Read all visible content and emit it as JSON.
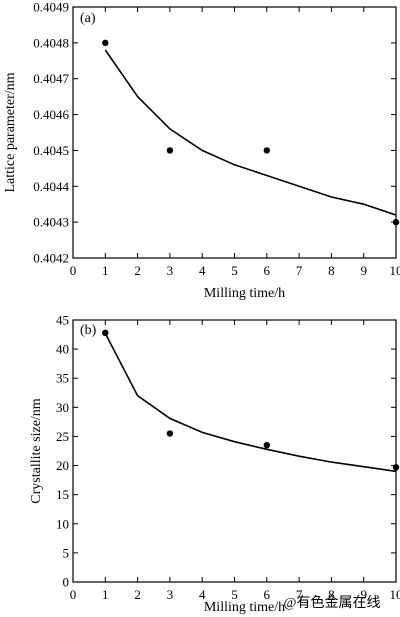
{
  "chart_data": [
    {
      "type": "scatter",
      "panel_label": "(a)",
      "xlabel": "Milling time/h",
      "ylabel": "Lattice parameter/nm",
      "xlim": [
        0,
        10
      ],
      "ylim": [
        0.4042,
        0.4049
      ],
      "xticks": [
        0,
        1,
        2,
        3,
        4,
        5,
        6,
        7,
        8,
        9,
        10
      ],
      "yticks": [
        "0.4042",
        "0.4043",
        "0.4044",
        "0.4045",
        "0.4046",
        "0.4047",
        "0.4048",
        "0.4049"
      ],
      "points": [
        {
          "x": 1,
          "y": 0.4048
        },
        {
          "x": 3,
          "y": 0.4045
        },
        {
          "x": 6,
          "y": 0.4045
        },
        {
          "x": 10,
          "y": 0.4043
        }
      ],
      "fit_curve": [
        {
          "x": 1,
          "y": 0.40478
        },
        {
          "x": 2,
          "y": 0.40465
        },
        {
          "x": 3,
          "y": 0.40456
        },
        {
          "x": 4,
          "y": 0.4045
        },
        {
          "x": 5,
          "y": 0.40446
        },
        {
          "x": 6,
          "y": 0.40443
        },
        {
          "x": 7,
          "y": 0.4044
        },
        {
          "x": 8,
          "y": 0.40437
        },
        {
          "x": 9,
          "y": 0.40435
        },
        {
          "x": 10,
          "y": 0.40432
        }
      ],
      "grid": false
    },
    {
      "type": "scatter",
      "panel_label": "(b)",
      "xlabel": "Milling time/h",
      "ylabel": "Crystallite size/nm",
      "xlim": [
        0,
        10
      ],
      "ylim": [
        0,
        45
      ],
      "xticks": [
        0,
        1,
        2,
        3,
        4,
        5,
        6,
        7,
        8,
        9,
        10
      ],
      "yticks": [
        "0",
        "5",
        "10",
        "15",
        "20",
        "25",
        "30",
        "35",
        "40",
        "45"
      ],
      "points": [
        {
          "x": 1,
          "y": 42.8
        },
        {
          "x": 3,
          "y": 25.5
        },
        {
          "x": 6,
          "y": 23.5
        },
        {
          "x": 10,
          "y": 19.7
        }
      ],
      "fit_curve": [
        {
          "x": 1,
          "y": 42.7
        },
        {
          "x": 2,
          "y": 32.0
        },
        {
          "x": 3,
          "y": 28.1
        },
        {
          "x": 4,
          "y": 25.7
        },
        {
          "x": 5,
          "y": 24.1
        },
        {
          "x": 6,
          "y": 22.8
        },
        {
          "x": 7,
          "y": 21.6
        },
        {
          "x": 8,
          "y": 20.6
        },
        {
          "x": 9,
          "y": 19.8
        },
        {
          "x": 10,
          "y": 19.0
        }
      ],
      "grid": false
    }
  ],
  "watermark": "@有色金属在线"
}
